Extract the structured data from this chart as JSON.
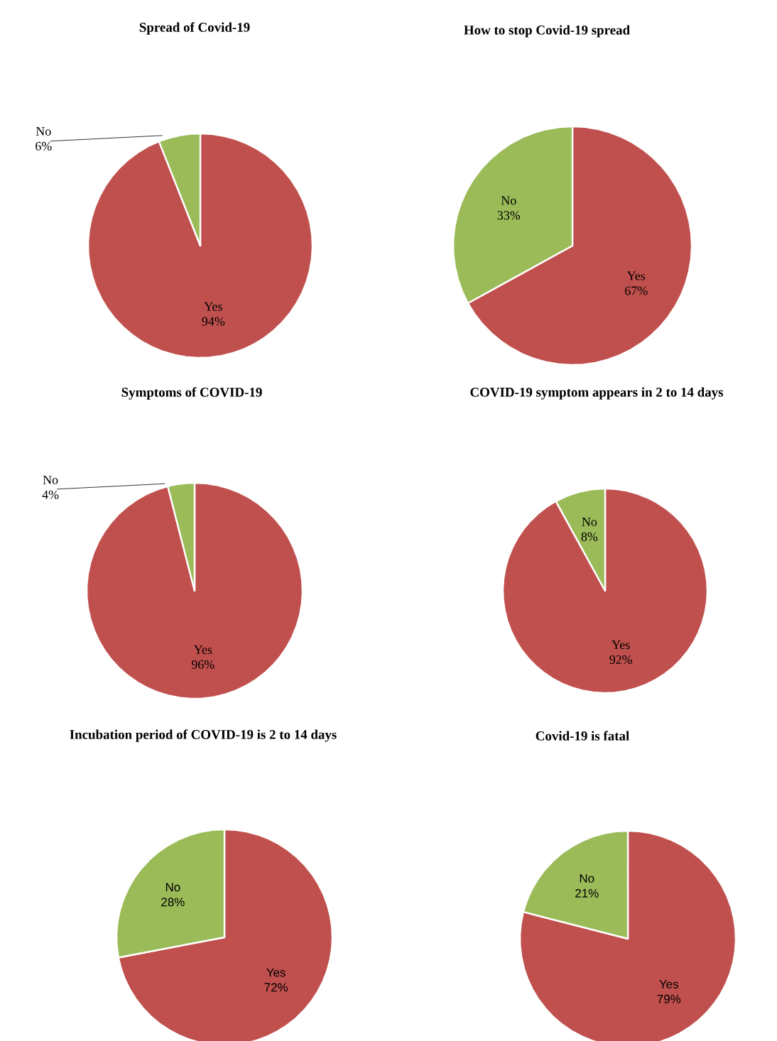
{
  "chart_data": [
    {
      "type": "pie",
      "title": "Spread of Covid-19",
      "categories": [
        "Yes",
        "No"
      ],
      "values": [
        94,
        6
      ],
      "colors": [
        "#c0504d",
        "#9bbb59"
      ],
      "value_labels": [
        "94%",
        "6%"
      ]
    },
    {
      "type": "pie",
      "title": "How to stop Covid-19 spread",
      "categories": [
        "Yes",
        "No"
      ],
      "values": [
        67,
        33
      ],
      "colors": [
        "#c0504d",
        "#9bbb59"
      ],
      "value_labels": [
        "67%",
        "33%"
      ]
    },
    {
      "type": "pie",
      "title": "Symptoms of COVID-19",
      "categories": [
        "Yes",
        "No"
      ],
      "values": [
        96,
        4
      ],
      "colors": [
        "#c0504d",
        "#9bbb59"
      ],
      "value_labels": [
        "96%",
        "4%"
      ]
    },
    {
      "type": "pie",
      "title": "COVID-19 symptom appears in 2 to 14 days",
      "categories": [
        "Yes",
        "No"
      ],
      "values": [
        92,
        8
      ],
      "colors": [
        "#c0504d",
        "#9bbb59"
      ],
      "value_labels": [
        "92%",
        "8%"
      ]
    },
    {
      "type": "pie",
      "title": "Incubation period of COVID-19 is 2 to 14 days",
      "categories": [
        "Yes",
        "No"
      ],
      "values": [
        72,
        28
      ],
      "colors": [
        "#c0504d",
        "#9bbb59"
      ],
      "value_labels": [
        "72%",
        "28%"
      ]
    },
    {
      "type": "pie",
      "title": "Covid-19 is fatal",
      "categories": [
        "Yes",
        "No"
      ],
      "values": [
        79,
        21
      ],
      "colors": [
        "#c0504d",
        "#9bbb59"
      ],
      "value_labels": [
        "79%",
        "21%"
      ]
    }
  ]
}
